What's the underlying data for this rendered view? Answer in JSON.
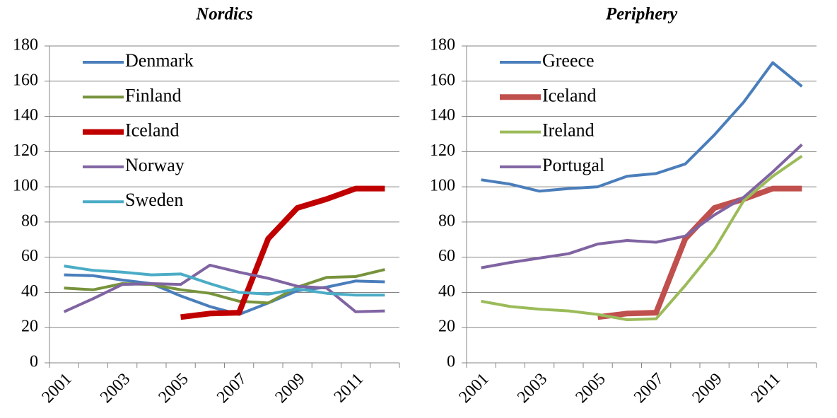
{
  "chart_data": [
    {
      "type": "line",
      "title": "Nordics",
      "categories": [
        "2001",
        null,
        "2003",
        null,
        "2005",
        null,
        "2007",
        null,
        "2009",
        null,
        "2011",
        null
      ],
      "series": [
        {
          "name": "Denmark",
          "color": "#4a7ebb",
          "line_width": 4,
          "values": [
            50,
            49.5,
            47,
            45,
            38,
            32,
            27.5,
            34,
            41,
            43,
            46.5,
            46
          ]
        },
        {
          "name": "Finland",
          "color": "#77933c",
          "line_width": 4,
          "values": [
            42.5,
            41.5,
            45,
            44.5,
            41.5,
            39.5,
            35,
            34,
            43,
            48.5,
            49,
            53
          ]
        },
        {
          "name": "Iceland",
          "color": "#c00000",
          "line_width": 8,
          "values": [
            null,
            null,
            null,
            null,
            26,
            28,
            28.5,
            70.5,
            88,
            93,
            99,
            99
          ]
        },
        {
          "name": "Norway",
          "color": "#8064a2",
          "line_width": 4,
          "values": [
            29,
            36.5,
            44.5,
            45,
            44.5,
            55.5,
            51.5,
            48,
            43.5,
            42.5,
            29,
            29.5
          ]
        },
        {
          "name": "Sweden",
          "color": "#4bacc6",
          "line_width": 4,
          "values": [
            55,
            52.5,
            51.5,
            50,
            50.5,
            45,
            40,
            39,
            42,
            39.5,
            38.5,
            38.5
          ]
        }
      ],
      "ylim": [
        0,
        180
      ],
      "yticks": [
        0,
        20,
        40,
        60,
        80,
        100,
        120,
        140,
        160,
        180
      ],
      "grid": true,
      "legend": "upper left"
    },
    {
      "type": "line",
      "title": "Periphery",
      "categories": [
        "2001",
        null,
        "2003",
        null,
        "2005",
        null,
        "2007",
        null,
        "2009",
        null,
        "2011",
        null
      ],
      "series": [
        {
          "name": "Greece",
          "color": "#4a7ebb",
          "line_width": 4,
          "values": [
            104,
            101.5,
            97.5,
            99,
            100,
            106,
            107.5,
            113,
            129.5,
            148,
            170.5,
            157
          ]
        },
        {
          "name": "Iceland",
          "color": "#c0504d",
          "line_width": 8,
          "values": [
            null,
            null,
            null,
            null,
            26,
            28,
            28.5,
            70.5,
            88,
            93,
            99,
            99
          ]
        },
        {
          "name": "Ireland",
          "color": "#9bbb59",
          "line_width": 4,
          "values": [
            35,
            32,
            30.5,
            29.5,
            27.5,
            24.5,
            25,
            44,
            64.5,
            92,
            106,
            117.5
          ]
        },
        {
          "name": "Portugal",
          "color": "#8064a2",
          "line_width": 4,
          "values": [
            54,
            57,
            59.5,
            62,
            67.5,
            69.5,
            68.5,
            72,
            84,
            94,
            108.5,
            124
          ]
        }
      ],
      "ylim": [
        0,
        180
      ],
      "yticks": [
        0,
        20,
        40,
        60,
        80,
        100,
        120,
        140,
        160,
        180
      ],
      "grid": true,
      "legend": "upper left"
    }
  ]
}
